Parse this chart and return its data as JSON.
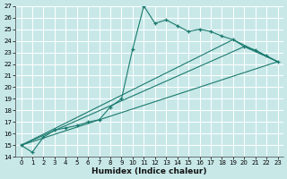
{
  "xlabel": "Humidex (Indice chaleur)",
  "bg_color": "#c8e8e8",
  "grid_color": "#ffffff",
  "line_color": "#1a7a6e",
  "xlim": [
    -0.5,
    23.5
  ],
  "ylim": [
    14,
    27
  ],
  "xticks": [
    0,
    1,
    2,
    3,
    4,
    5,
    6,
    7,
    8,
    9,
    10,
    11,
    12,
    13,
    14,
    15,
    16,
    17,
    18,
    19,
    20,
    21,
    22,
    23
  ],
  "yticks": [
    14,
    15,
    16,
    17,
    18,
    19,
    20,
    21,
    22,
    23,
    24,
    25,
    26,
    27
  ],
  "main_line": {
    "x": [
      0,
      1,
      2,
      3,
      4,
      5,
      6,
      7,
      8,
      9,
      10,
      11,
      12,
      13,
      14,
      15,
      16,
      17,
      18,
      19,
      20,
      21,
      22,
      23
    ],
    "y": [
      15.0,
      14.4,
      15.7,
      16.3,
      16.5,
      16.7,
      17.0,
      17.2,
      18.3,
      19.0,
      23.3,
      27.0,
      25.5,
      25.8,
      25.3,
      24.8,
      25.0,
      24.8,
      24.4,
      24.1,
      23.5,
      23.2,
      22.7,
      22.2
    ]
  },
  "straight_lines": [
    {
      "x": [
        0,
        23
      ],
      "y": [
        15.0,
        22.2
      ]
    },
    {
      "x": [
        0,
        20,
        23
      ],
      "y": [
        15.0,
        23.5,
        22.2
      ]
    },
    {
      "x": [
        0,
        19,
        23
      ],
      "y": [
        15.0,
        24.1,
        22.2
      ]
    }
  ]
}
